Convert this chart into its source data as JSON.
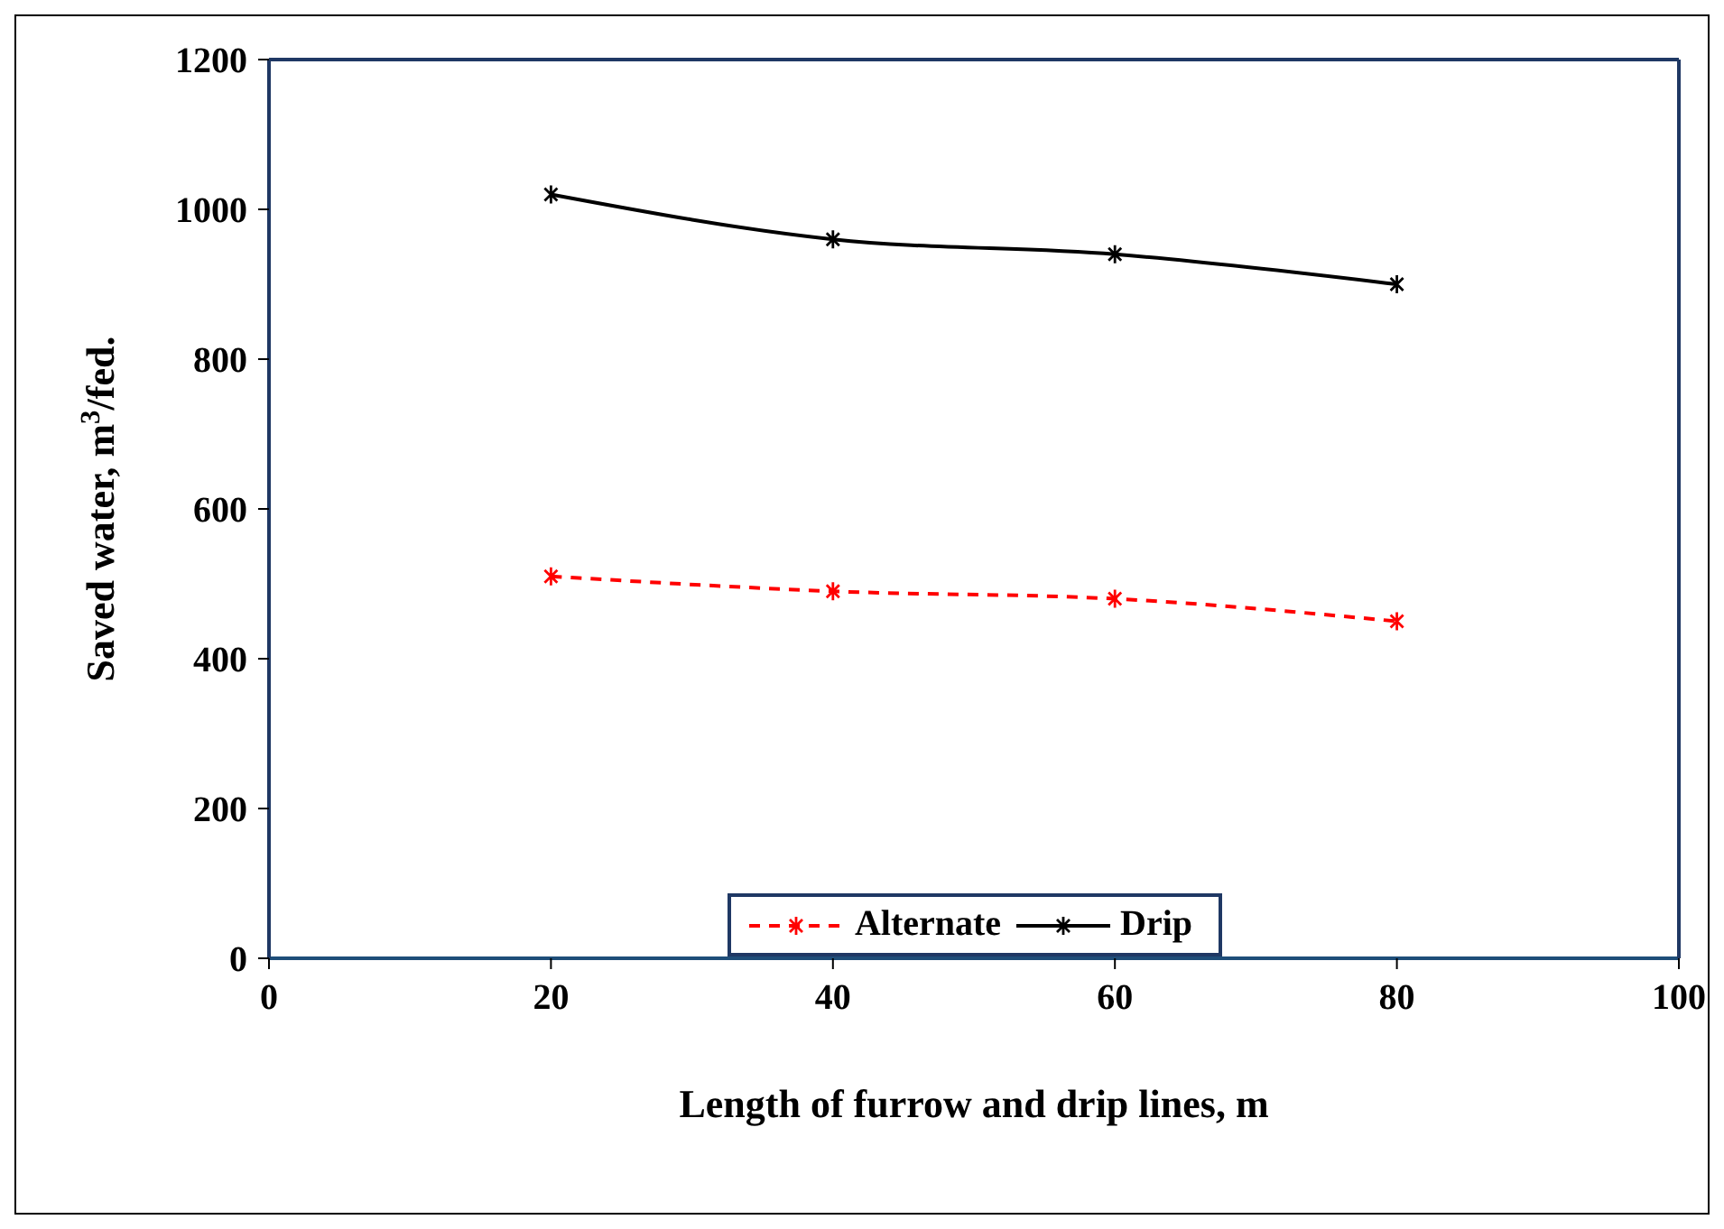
{
  "chart_data": {
    "type": "line",
    "xlabel": "Length of furrow and drip lines, m",
    "ylabel": "Saved water, m$^{3}$/fed.",
    "x": [
      20,
      40,
      60,
      80
    ],
    "series": [
      {
        "name": "Alternate",
        "color": "#ff0000",
        "values": [
          510,
          490,
          480,
          450
        ],
        "line_style": "dashed"
      },
      {
        "name": "Drip",
        "color": "#000000",
        "values": [
          1020,
          960,
          940,
          900
        ],
        "line_style": "solid"
      }
    ],
    "xlim": [
      0,
      100
    ],
    "xticks": [
      0,
      20,
      40,
      60,
      80,
      100
    ],
    "ylim": [
      0,
      1200
    ],
    "yticks": [
      0,
      200,
      400,
      600,
      800,
      1000,
      1200
    ],
    "legend": "bottom",
    "marker": "cross"
  }
}
